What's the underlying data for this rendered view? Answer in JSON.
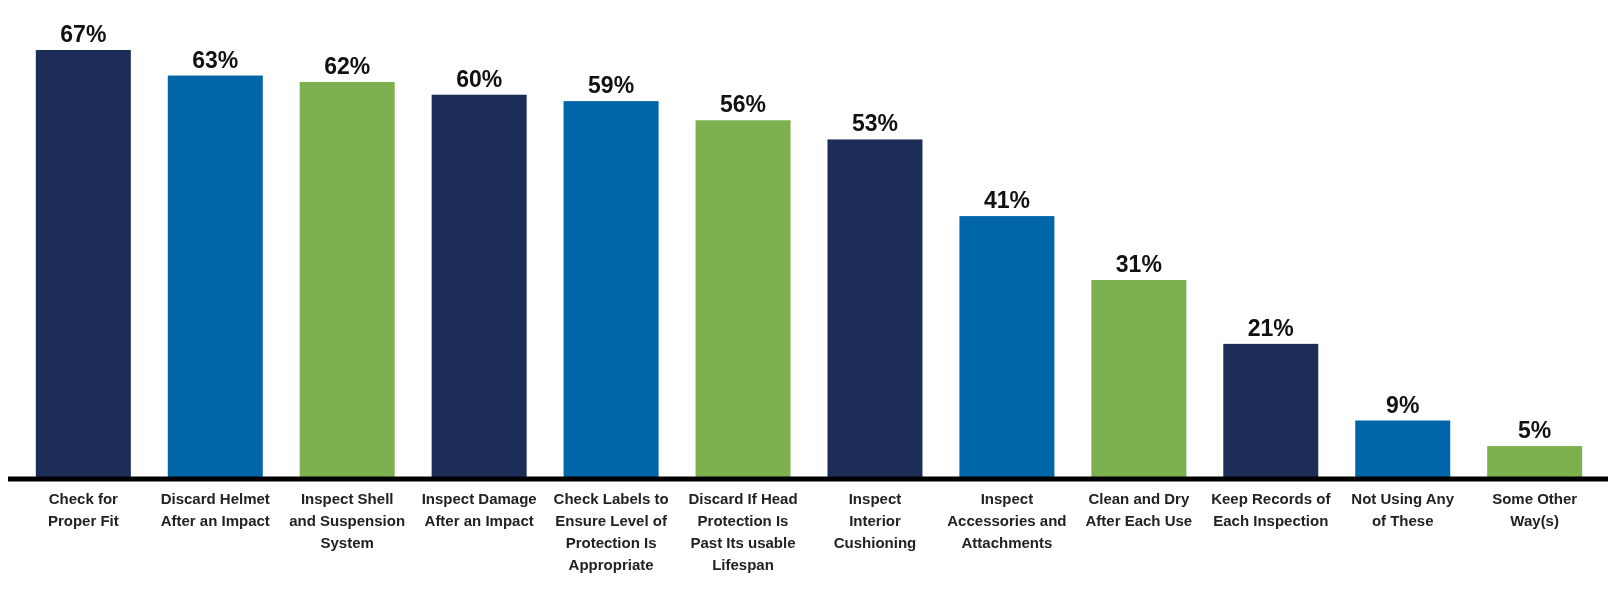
{
  "chart_data": {
    "type": "bar",
    "categories": [
      "Check for Proper Fit",
      "Discard Helmet After an Impact",
      "Inspect Shell and Suspension System",
      "Inspect Damage After an Impact",
      "Check Labels to Ensure Level of Protection Is Appropriate",
      "Discard If Head Protection Is Past Its usable Lifespan",
      "Inspect Interior Cushioning",
      "Inspect Accessories and Attachments",
      "Clean and Dry After Each Use",
      "Keep Records of Each Inspection",
      "Not Using Any of These",
      "Some Other Way(s)"
    ],
    "values": [
      67,
      63,
      62,
      60,
      59,
      56,
      53,
      41,
      31,
      21,
      9,
      5
    ],
    "colors": [
      "#1c2e57",
      "#0066a8",
      "#7db150",
      "#1c2e57",
      "#0066a8",
      "#7db150",
      "#1c2e57",
      "#0066a8",
      "#7db150",
      "#1c2e57",
      "#0066a8",
      "#7db150"
    ],
    "value_labels": [
      "67%",
      "63%",
      "62%",
      "60%",
      "59%",
      "56%",
      "53%",
      "41%",
      "31%",
      "21%",
      "9%",
      "5%"
    ],
    "data_labels": false
  }
}
